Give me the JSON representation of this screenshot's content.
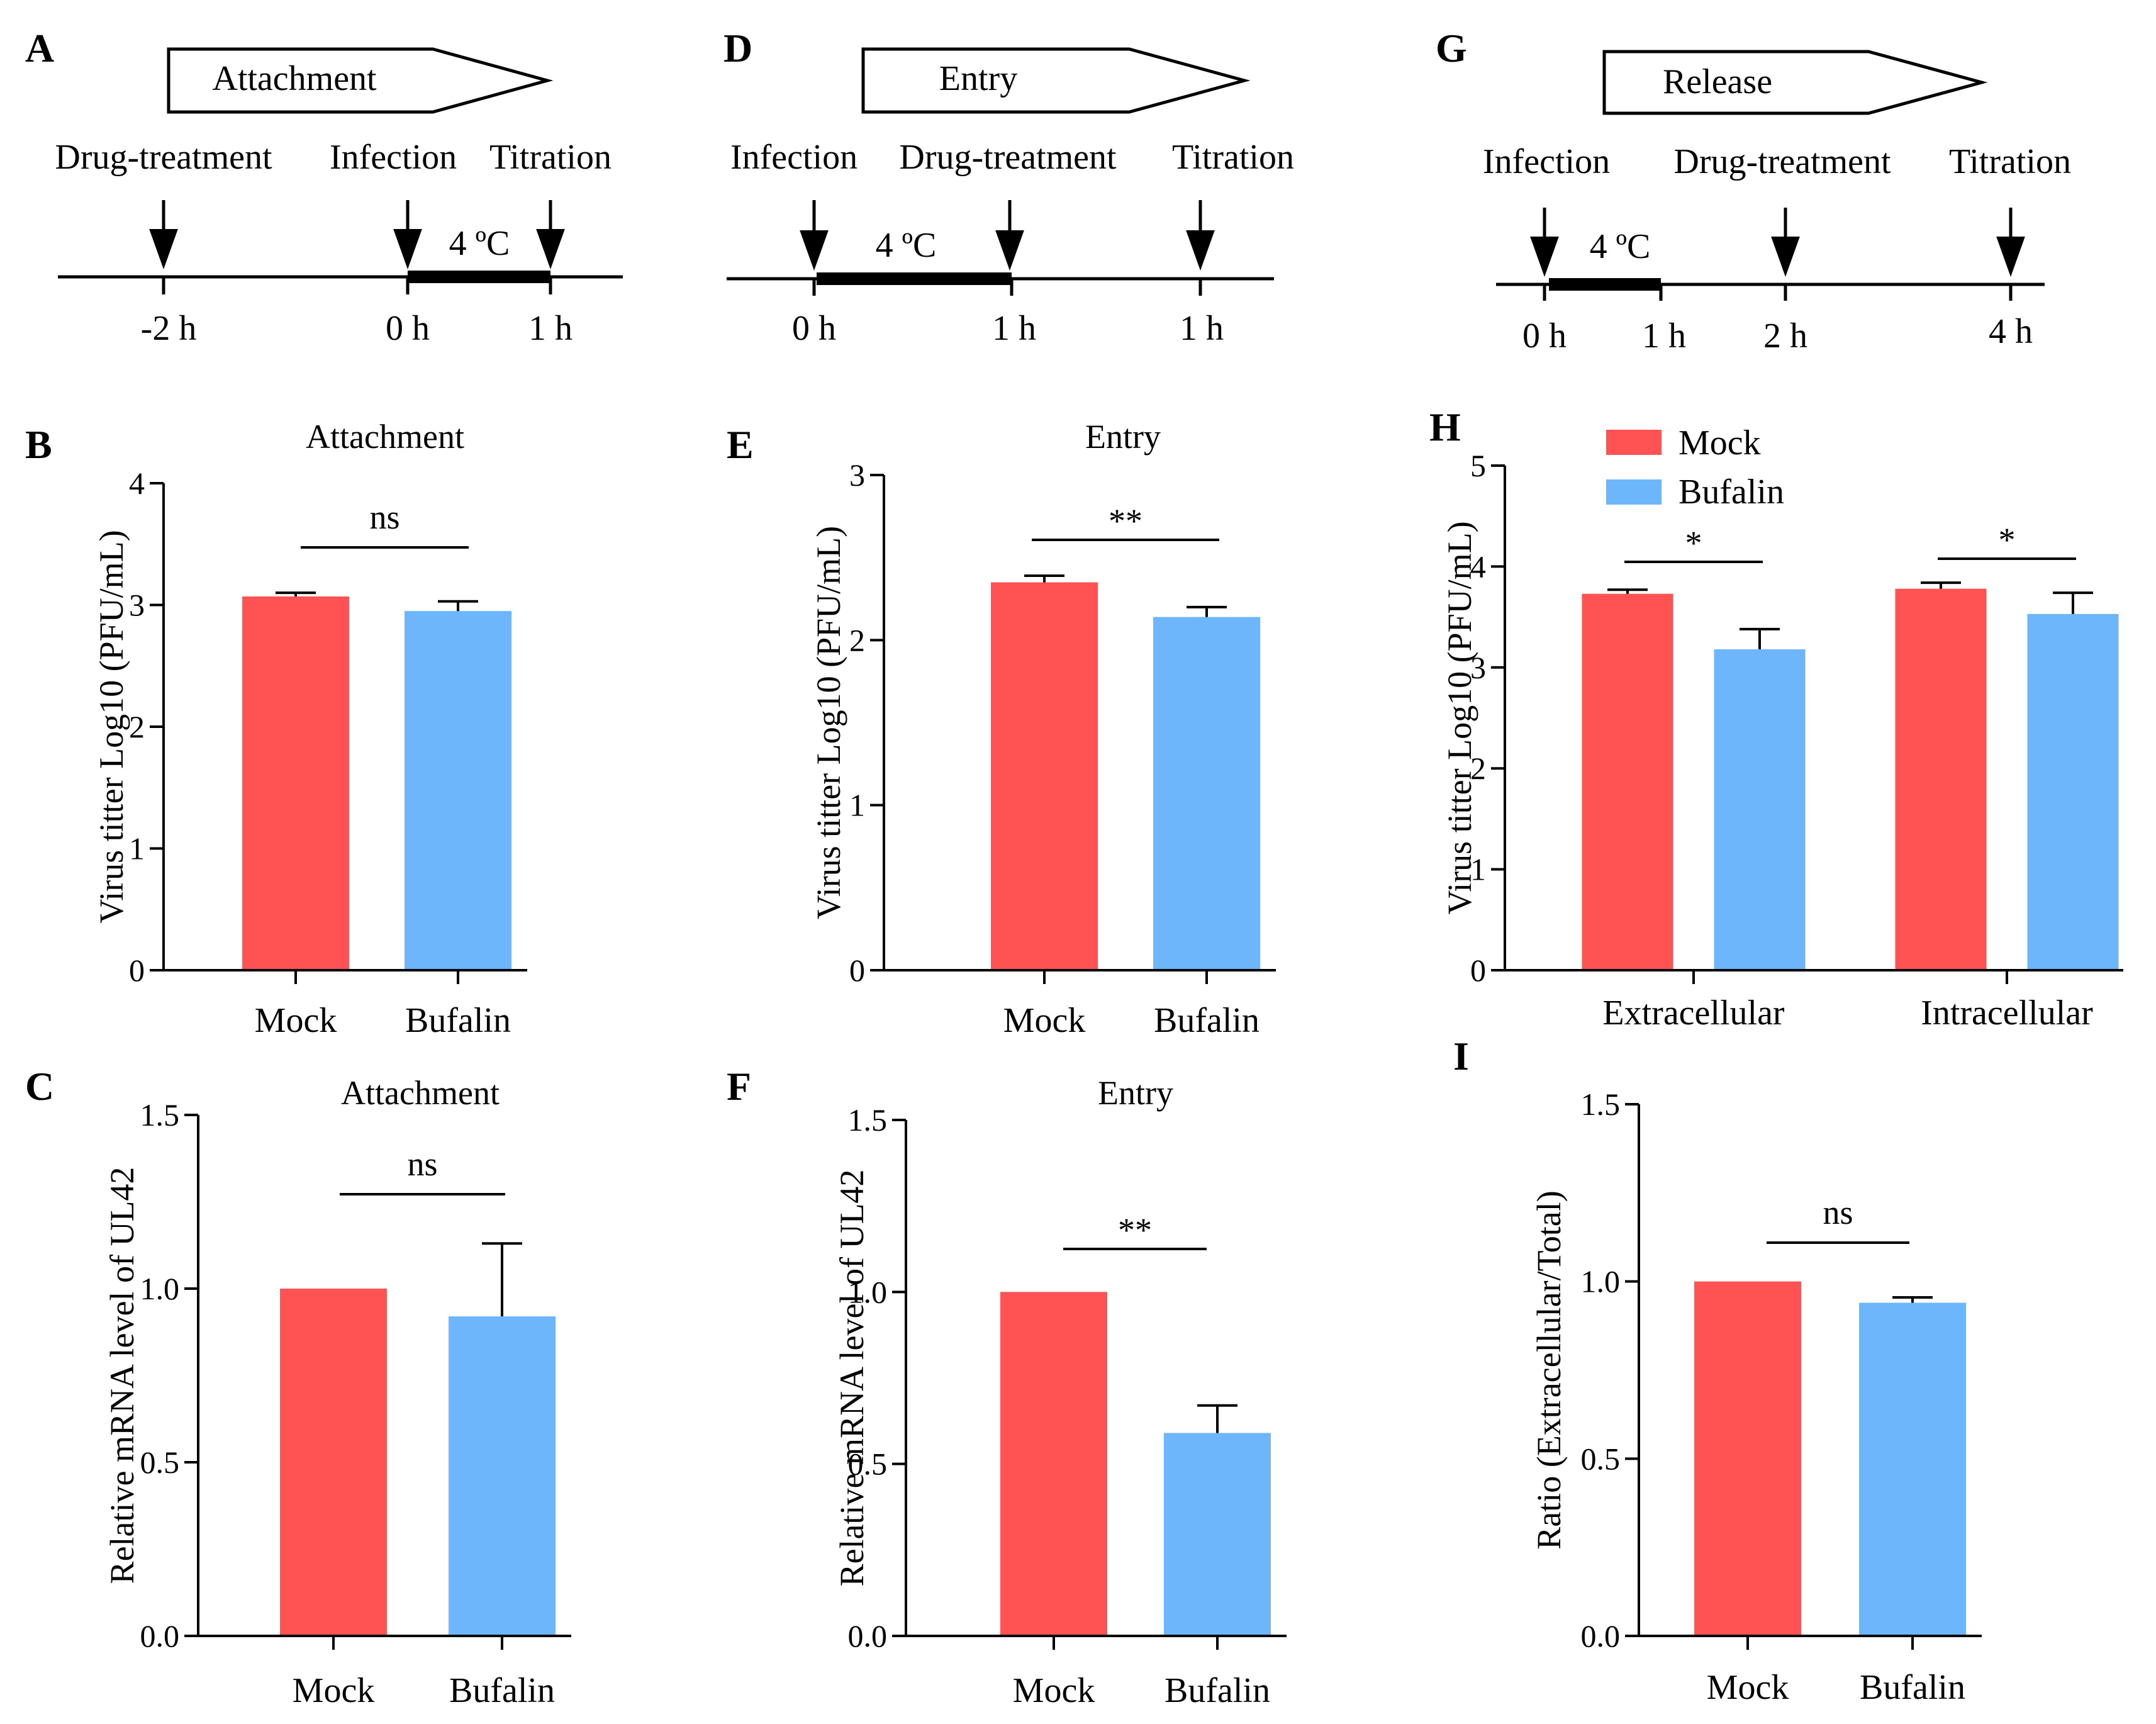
{
  "colors": {
    "mock": "#ff5252",
    "bufalin": "#6eb6fb",
    "axis": "#000000"
  },
  "timelines": [
    {
      "panel": "A",
      "phase": "Attachment",
      "steps": [
        "Drug-treatment",
        "Infection",
        "Titration"
      ],
      "times": [
        "-2 h",
        "0 h",
        "1 h"
      ],
      "cold": "4 ºC"
    },
    {
      "panel": "D",
      "phase": "Entry",
      "steps": [
        "Infection",
        "Drug-treatment",
        "Titration"
      ],
      "times": [
        "0 h",
        "1 h",
        "1 h"
      ],
      "cold": "4 ºC"
    },
    {
      "panel": "G",
      "phase": "Release",
      "steps": [
        "Infection",
        "Drug-treatment",
        "Titration"
      ],
      "times": [
        "0 h",
        "1 h",
        "2 h",
        "4 h"
      ],
      "cold": "4 ºC"
    }
  ],
  "legend": {
    "items": [
      "Mock",
      "Bufalin"
    ]
  },
  "chart_data": [
    {
      "panel": "B",
      "type": "bar",
      "title": "Attachment",
      "ylabel": "Virus titter Log10 (PFU/mL)",
      "ylim": [
        0,
        4
      ],
      "yticks": [
        "0",
        "1",
        "2",
        "3",
        "4"
      ],
      "categories": [
        "Mock",
        "Bufalin"
      ],
      "values": [
        3.07,
        2.95
      ],
      "errors": [
        0.03,
        0.08
      ],
      "significance": [
        {
          "between": [
            0,
            1
          ],
          "label": "ns"
        }
      ]
    },
    {
      "panel": "E",
      "type": "bar",
      "title": "Entry",
      "ylabel": "Virus titter Log10 (PFU/mL)",
      "ylim": [
        0,
        3
      ],
      "yticks": [
        "0",
        "1",
        "2",
        "3"
      ],
      "categories": [
        "Mock",
        "Bufalin"
      ],
      "values": [
        2.35,
        2.14
      ],
      "errors": [
        0.04,
        0.06
      ],
      "significance": [
        {
          "between": [
            0,
            1
          ],
          "label": "**"
        }
      ]
    },
    {
      "panel": "H",
      "type": "bar",
      "title": "",
      "ylabel": "Virus titter Log10 (PFU/mL)",
      "ylim": [
        0,
        5
      ],
      "yticks": [
        "0",
        "1",
        "2",
        "3",
        "4",
        "5"
      ],
      "categories": [
        "Extracellular",
        "Intracellular"
      ],
      "series": [
        {
          "name": "Mock",
          "values": [
            3.73,
            3.78
          ],
          "errors": [
            0.04,
            0.06
          ]
        },
        {
          "name": "Bufalin",
          "values": [
            3.18,
            3.53
          ],
          "errors": [
            0.2,
            0.21
          ]
        }
      ],
      "significance": [
        {
          "group": 0,
          "label": "*"
        },
        {
          "group": 1,
          "label": "*"
        }
      ]
    },
    {
      "panel": "C",
      "type": "bar",
      "title": "Attachment",
      "ylabel": "Relative  mRNA level of UL42",
      "ylim": [
        0,
        1.5
      ],
      "yticks": [
        "0.0",
        "0.5",
        "1.0",
        "1.5"
      ],
      "categories": [
        "Mock",
        "Bufalin"
      ],
      "values": [
        1.0,
        0.92
      ],
      "errors": [
        0,
        0.21
      ],
      "significance": [
        {
          "between": [
            0,
            1
          ],
          "label": "ns"
        }
      ]
    },
    {
      "panel": "F",
      "type": "bar",
      "title": "Entry",
      "ylabel": "Relative  mRNA level of UL42",
      "ylim": [
        0,
        1.5
      ],
      "yticks": [
        "0.0",
        "0.5",
        "1.0",
        "1.5"
      ],
      "categories": [
        "Mock",
        "Bufalin"
      ],
      "values": [
        1.0,
        0.59
      ],
      "errors": [
        0,
        0.08
      ],
      "significance": [
        {
          "between": [
            0,
            1
          ],
          "label": "**"
        }
      ]
    },
    {
      "panel": "I",
      "type": "bar",
      "title": "",
      "ylabel": "Ratio (Extracellular/Total)",
      "ylim": [
        0,
        1.5
      ],
      "yticks": [
        "0.0",
        "0.5",
        "1.0",
        "1.5"
      ],
      "categories": [
        "Mock",
        "Bufalin"
      ],
      "values": [
        1.0,
        0.94
      ],
      "errors": [
        0,
        0.015
      ],
      "significance": [
        {
          "between": [
            0,
            1
          ],
          "label": "ns"
        }
      ]
    }
  ]
}
